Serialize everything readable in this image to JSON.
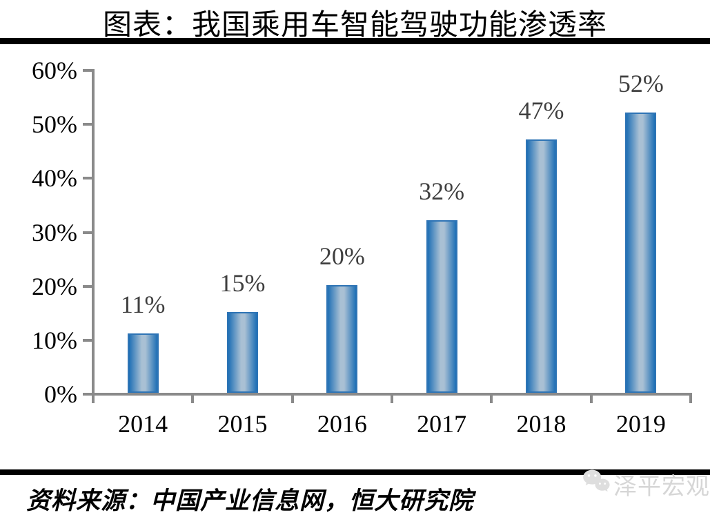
{
  "title": "图表：我国乘用车智能驾驶功能渗透率",
  "source_line": "资料来源：中国产业信息网，恒大研究院",
  "watermark": {
    "label": "泽平宏观",
    "icon": "wechat-bubbles-icon",
    "color": "#d6d6d6"
  },
  "colors": {
    "divider": "#000000",
    "axis": "#8a8a8a",
    "bar_edge": "#1e6fb5",
    "bar_mid": "#a9c0d4",
    "bar_border": "#2e74b5",
    "value_label": "#3f3f3f",
    "tick_label": "#000000",
    "watermark": "#d6d6d6"
  },
  "chart_data": {
    "type": "bar",
    "title": "图表：我国乘用车智能驾驶功能渗透率",
    "categories": [
      "2014",
      "2015",
      "2016",
      "2017",
      "2018",
      "2019"
    ],
    "values": [
      11,
      15,
      20,
      32,
      47,
      52
    ],
    "data_labels": [
      "11%",
      "15%",
      "20%",
      "32%",
      "47%",
      "52%"
    ],
    "xlabel": "",
    "ylabel": "",
    "ylim": [
      0,
      60
    ],
    "ytick_step": 10,
    "ytick_labels": [
      "0%",
      "10%",
      "20%",
      "30%",
      "40%",
      "50%",
      "60%"
    ],
    "grid": false,
    "legend": "none",
    "bar_color": "blue gradient cylinder"
  }
}
